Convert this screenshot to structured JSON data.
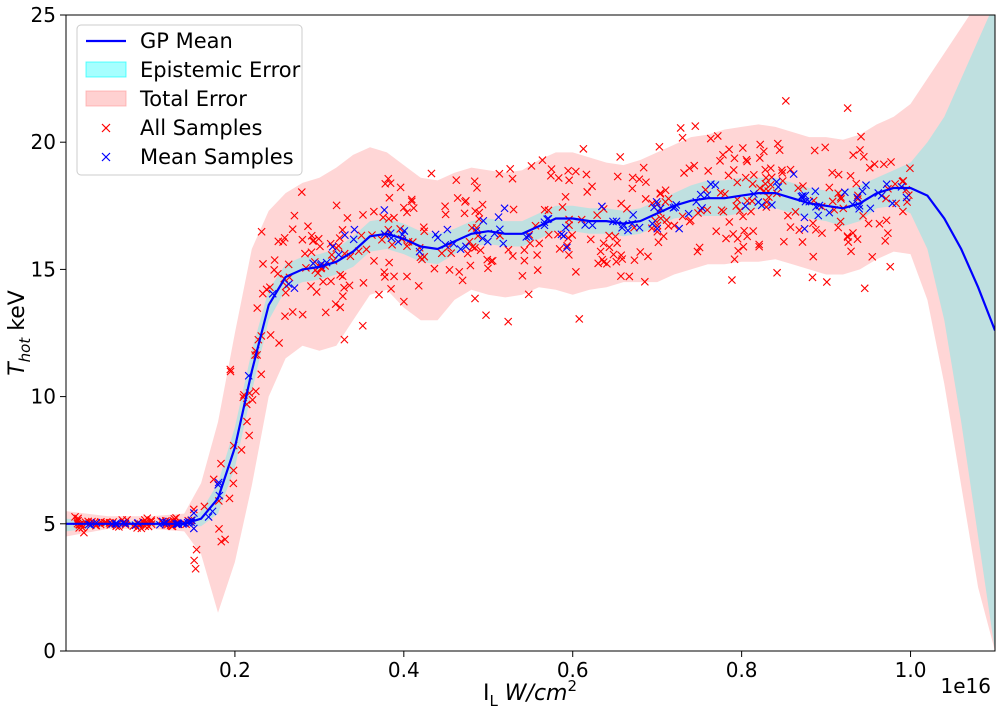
{
  "chart_data": {
    "type": "line",
    "xlabel": "I_L W/cm^2",
    "ylabel": "T_hot keV",
    "x_offset_label": "1e16",
    "x_tick_labels": [
      "0.2",
      "0.4",
      "0.6",
      "0.8",
      "1.0"
    ],
    "y_tick_labels": [
      "0",
      "5",
      "10",
      "15",
      "20",
      "25"
    ],
    "xlim": [
      0.0,
      1.1
    ],
    "ylim": [
      0,
      25
    ],
    "grid": false,
    "legend_position": "top-left",
    "legend": [
      "GP Mean",
      "Epistemic Error",
      "Total Error",
      "All Samples",
      "Mean Samples"
    ],
    "colors": {
      "mean": "#0000ff",
      "epistemic": "#00ffff",
      "total": "#ff9999",
      "all_samples": "#ff0000",
      "mean_samples": "#0000ff"
    },
    "series": [
      {
        "name": "GP Mean",
        "x": [
          0.0,
          0.05,
          0.1,
          0.14,
          0.16,
          0.18,
          0.2,
          0.22,
          0.24,
          0.26,
          0.28,
          0.3,
          0.32,
          0.34,
          0.36,
          0.38,
          0.4,
          0.42,
          0.44,
          0.46,
          0.48,
          0.5,
          0.52,
          0.54,
          0.56,
          0.58,
          0.6,
          0.62,
          0.64,
          0.66,
          0.68,
          0.7,
          0.72,
          0.74,
          0.76,
          0.78,
          0.8,
          0.82,
          0.84,
          0.86,
          0.88,
          0.9,
          0.92,
          0.94,
          0.96,
          0.98,
          1.0,
          1.02,
          1.04,
          1.06,
          1.08,
          1.1
        ],
        "y": [
          5.0,
          5.0,
          5.0,
          5.0,
          5.2,
          6.0,
          8.0,
          11.0,
          13.6,
          14.7,
          15.0,
          15.1,
          15.3,
          15.7,
          16.3,
          16.4,
          16.2,
          15.9,
          15.8,
          16.1,
          16.4,
          16.5,
          16.4,
          16.4,
          16.7,
          17.0,
          17.0,
          16.9,
          16.9,
          16.8,
          16.9,
          17.2,
          17.5,
          17.7,
          17.8,
          17.8,
          17.9,
          18.0,
          18.0,
          17.8,
          17.6,
          17.5,
          17.4,
          17.6,
          18.0,
          18.2,
          18.2,
          17.9,
          17.0,
          15.8,
          14.3,
          12.6
        ]
      },
      {
        "name": "Epistemic Error",
        "x": [
          0.0,
          0.05,
          0.1,
          0.14,
          0.16,
          0.18,
          0.2,
          0.22,
          0.24,
          0.26,
          0.28,
          0.3,
          0.32,
          0.34,
          0.36,
          0.38,
          0.4,
          0.42,
          0.44,
          0.46,
          0.48,
          0.5,
          0.52,
          0.54,
          0.56,
          0.58,
          0.6,
          0.62,
          0.64,
          0.66,
          0.68,
          0.7,
          0.72,
          0.74,
          0.76,
          0.78,
          0.8,
          0.82,
          0.84,
          0.86,
          0.88,
          0.9,
          0.92,
          0.94,
          0.96,
          0.98,
          1.0,
          1.02,
          1.04,
          1.06,
          1.08,
          1.1
        ],
        "upper": [
          5.2,
          5.1,
          5.1,
          5.1,
          5.5,
          6.6,
          8.8,
          11.8,
          14.2,
          15.2,
          15.5,
          15.6,
          15.8,
          16.3,
          16.9,
          17.0,
          16.8,
          16.5,
          16.4,
          16.6,
          16.9,
          17.0,
          16.9,
          16.9,
          17.2,
          17.5,
          17.5,
          17.4,
          17.4,
          17.3,
          17.4,
          17.7,
          18.0,
          18.3,
          18.5,
          18.5,
          18.6,
          18.6,
          18.6,
          18.4,
          18.2,
          18.1,
          18.1,
          18.3,
          18.6,
          18.9,
          19.2,
          20.0,
          21.0,
          22.5,
          24.0,
          25.5
        ],
        "lower": [
          4.7,
          4.9,
          4.9,
          4.9,
          4.9,
          5.4,
          7.2,
          10.2,
          13.0,
          14.2,
          14.5,
          14.6,
          14.8,
          15.1,
          15.7,
          15.8,
          15.6,
          15.3,
          15.2,
          15.6,
          15.9,
          16.0,
          15.9,
          15.9,
          16.2,
          16.5,
          16.5,
          16.4,
          16.4,
          16.3,
          16.4,
          16.7,
          17.0,
          17.1,
          17.1,
          17.1,
          17.2,
          17.4,
          17.4,
          17.2,
          17.0,
          16.9,
          16.7,
          16.9,
          17.4,
          17.5,
          17.2,
          15.8,
          13.0,
          9.0,
          4.5,
          0.0
        ]
      },
      {
        "name": "Total Error",
        "x": [
          0.0,
          0.05,
          0.1,
          0.14,
          0.16,
          0.18,
          0.2,
          0.22,
          0.24,
          0.26,
          0.28,
          0.3,
          0.32,
          0.34,
          0.36,
          0.38,
          0.4,
          0.42,
          0.44,
          0.46,
          0.48,
          0.5,
          0.52,
          0.54,
          0.56,
          0.58,
          0.6,
          0.62,
          0.64,
          0.66,
          0.68,
          0.7,
          0.72,
          0.74,
          0.76,
          0.78,
          0.8,
          0.82,
          0.84,
          0.86,
          0.88,
          0.9,
          0.92,
          0.94,
          0.96,
          0.98,
          1.0,
          1.02,
          1.04,
          1.06,
          1.08,
          1.1
        ],
        "upper": [
          5.5,
          5.3,
          5.3,
          5.4,
          6.6,
          9.0,
          12.5,
          15.8,
          17.3,
          18.0,
          18.4,
          18.6,
          19.0,
          19.5,
          19.8,
          19.6,
          19.1,
          18.6,
          18.5,
          18.8,
          19.0,
          18.9,
          18.8,
          18.9,
          19.3,
          19.6,
          19.6,
          19.4,
          19.2,
          19.1,
          19.3,
          19.6,
          19.9,
          20.2,
          20.3,
          20.5,
          20.6,
          20.7,
          20.6,
          20.4,
          20.2,
          20.2,
          20.1,
          20.3,
          20.7,
          21.0,
          21.5,
          22.5,
          23.5,
          24.5,
          25.5,
          26.0
        ],
        "lower": [
          4.5,
          4.8,
          4.8,
          4.7,
          3.8,
          1.5,
          3.5,
          6.5,
          10.0,
          11.5,
          12.0,
          11.8,
          12.0,
          13.0,
          14.0,
          14.2,
          13.5,
          13.0,
          13.0,
          13.8,
          14.2,
          14.0,
          13.9,
          14.0,
          14.3,
          14.2,
          14.0,
          14.2,
          14.3,
          14.5,
          14.5,
          14.5,
          14.8,
          15.0,
          15.2,
          15.2,
          15.3,
          15.3,
          15.4,
          15.2,
          15.0,
          14.8,
          14.8,
          15.0,
          15.4,
          15.7,
          15.6,
          13.8,
          10.5,
          6.5,
          2.5,
          0.0
        ]
      }
    ],
    "samples": {
      "all_count": 500,
      "mean_count": 140
    }
  }
}
